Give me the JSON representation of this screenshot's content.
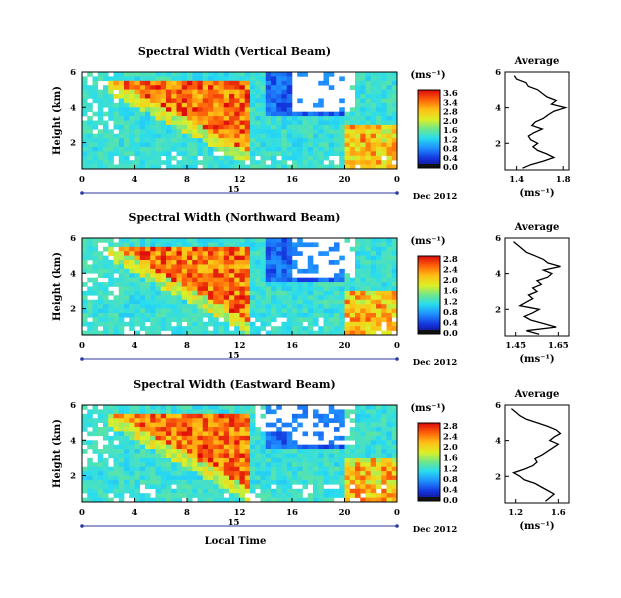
{
  "figure": {
    "x_axis_label": "Local Time",
    "y_axis_label": "Height (km)",
    "colorbar_unit": "(ms⁻¹)",
    "average_title": "Average",
    "average_unit": "(ms⁻¹)",
    "date_label": "Dec 2012",
    "day_label": "15",
    "x_ticks": [
      "0",
      "4",
      "8",
      "12",
      "16",
      "20",
      "0"
    ]
  },
  "chart_data": [
    {
      "type": "heatmap",
      "title": "Spectral Width (Vertical Beam)",
      "x_label": "Local Time",
      "y_label": "Height (km)",
      "x_range": [
        0,
        24
      ],
      "y_range": [
        0.5,
        6
      ],
      "y_ticks": [
        "6",
        "4",
        "2"
      ],
      "colorbar_ticks": [
        "3.6",
        "3.4",
        "2.8",
        "2.0",
        "1.6",
        "1.2",
        "0.8",
        "0.4",
        "0.0"
      ],
      "colorbar_range": [
        0,
        3.6
      ],
      "features": {
        "high_band_start_hour": 2,
        "high_band_end_hour": 13,
        "high_band_top_km": 5.6,
        "high_band_bottom_km": 1.4,
        "missing_region": "upper heights 15-20 h"
      },
      "average_profile": {
        "x_ticks": [
          "1.4",
          "1.8"
        ],
        "x_range": [
          1.3,
          1.85
        ],
        "y_ticks": [
          "6",
          "4",
          "2"
        ],
        "y_range": [
          0.5,
          6
        ],
        "height": [
          0.6,
          0.8,
          1.0,
          1.2,
          1.4,
          1.6,
          1.8,
          2.0,
          2.2,
          2.4,
          2.6,
          2.8,
          3.0,
          3.2,
          3.4,
          3.6,
          3.8,
          4.0,
          4.2,
          4.4,
          4.6,
          4.8,
          5.0,
          5.2,
          5.4,
          5.6,
          5.8
        ],
        "value": [
          1.45,
          1.52,
          1.63,
          1.72,
          1.66,
          1.58,
          1.54,
          1.58,
          1.52,
          1.5,
          1.55,
          1.62,
          1.53,
          1.56,
          1.63,
          1.67,
          1.72,
          1.82,
          1.7,
          1.74,
          1.66,
          1.62,
          1.58,
          1.5,
          1.48,
          1.4,
          1.38
        ]
      }
    },
    {
      "type": "heatmap",
      "title": "Spectral Width (Northward Beam)",
      "x_label": "Local Time",
      "y_label": "Height (km)",
      "x_range": [
        0,
        24
      ],
      "y_range": [
        0.5,
        6
      ],
      "y_ticks": [
        "6",
        "4",
        "2"
      ],
      "colorbar_ticks": [
        "2.8",
        "2.4",
        "2.0",
        "1.6",
        "1.2",
        "0.8",
        "0.4",
        "0.0"
      ],
      "colorbar_range": [
        0,
        2.8
      ],
      "features": {
        "high_band_start_hour": 2,
        "high_band_end_hour": 13,
        "high_band_top_km": 5.6,
        "high_band_bottom_km": 1.2,
        "missing_region": "upper heights 15-19 h"
      },
      "average_profile": {
        "x_ticks": [
          "1.45",
          "1.65"
        ],
        "x_range": [
          1.4,
          1.7
        ],
        "y_ticks": [
          "6",
          "4",
          "2"
        ],
        "y_range": [
          0.5,
          6
        ],
        "height": [
          0.6,
          0.8,
          1.0,
          1.2,
          1.4,
          1.6,
          1.8,
          2.0,
          2.2,
          2.4,
          2.6,
          2.8,
          3.0,
          3.2,
          3.4,
          3.6,
          3.8,
          4.0,
          4.2,
          4.4,
          4.6,
          4.8,
          5.0,
          5.2,
          5.4,
          5.6,
          5.8
        ],
        "value": [
          1.56,
          1.5,
          1.64,
          1.58,
          1.52,
          1.49,
          1.53,
          1.56,
          1.47,
          1.5,
          1.53,
          1.51,
          1.55,
          1.53,
          1.57,
          1.55,
          1.6,
          1.62,
          1.58,
          1.66,
          1.6,
          1.58,
          1.54,
          1.5,
          1.48,
          1.46,
          1.44
        ]
      }
    },
    {
      "type": "heatmap",
      "title": "Spectral Width (Eastward Beam)",
      "x_label": "Local Time",
      "y_label": "Height (km)",
      "x_range": [
        0,
        24
      ],
      "y_range": [
        0.5,
        6
      ],
      "y_ticks": [
        "6",
        "4",
        "2"
      ],
      "colorbar_ticks": [
        "2.8",
        "2.4",
        "2.0",
        "1.6",
        "1.2",
        "0.8",
        "0.4",
        "0.0"
      ],
      "colorbar_range": [
        0,
        2.8
      ],
      "features": {
        "high_band_start_hour": 2,
        "high_band_end_hour": 13,
        "high_band_top_km": 5.6,
        "high_band_bottom_km": 1.2,
        "missing_region": "upper heights 14-16 h"
      },
      "average_profile": {
        "x_ticks": [
          "1.2",
          "1.6"
        ],
        "x_range": [
          1.1,
          1.7
        ],
        "y_ticks": [
          "6",
          "4",
          "2"
        ],
        "y_range": [
          0.5,
          6
        ],
        "height": [
          0.6,
          0.8,
          1.0,
          1.2,
          1.4,
          1.6,
          1.8,
          2.0,
          2.2,
          2.4,
          2.6,
          2.8,
          3.0,
          3.2,
          3.4,
          3.6,
          3.8,
          4.0,
          4.2,
          4.4,
          4.6,
          4.8,
          5.0,
          5.2,
          5.4,
          5.6,
          5.8
        ],
        "value": [
          1.48,
          1.52,
          1.56,
          1.5,
          1.44,
          1.38,
          1.28,
          1.24,
          1.18,
          1.28,
          1.36,
          1.4,
          1.38,
          1.45,
          1.5,
          1.55,
          1.6,
          1.52,
          1.56,
          1.62,
          1.58,
          1.5,
          1.4,
          1.3,
          1.24,
          1.2,
          1.16
        ]
      }
    }
  ]
}
